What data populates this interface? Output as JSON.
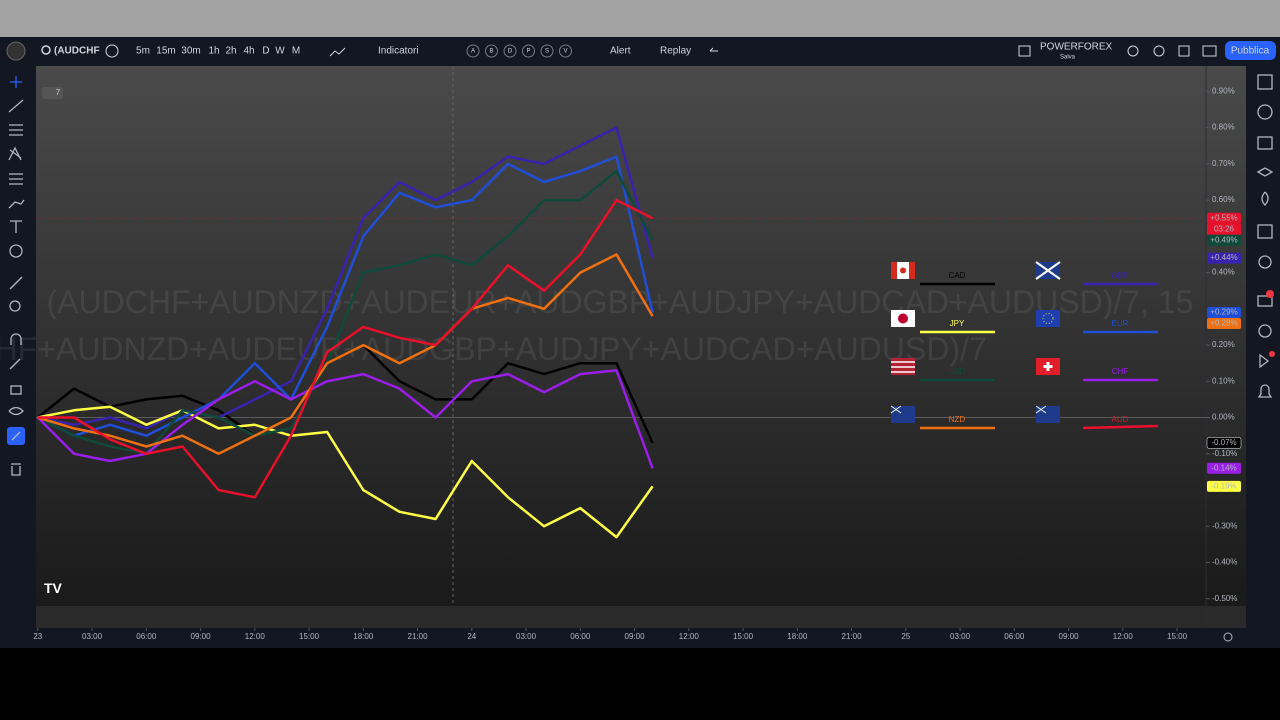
{
  "toolbar": {
    "symbol": "(AUDCHF",
    "intervals": [
      "5m",
      "15m",
      "30m",
      "1h",
      "2h",
      "4h",
      "D",
      "W",
      "M"
    ],
    "indicators": "Indicatori",
    "indicator_letters": [
      "A",
      "B",
      "D",
      "P",
      "S",
      "V"
    ],
    "alert": "Alert",
    "replay": "Replay",
    "broker": "POWERFOREX",
    "save": "Salva",
    "publish": "Pubblica"
  },
  "pane": {
    "collapse_count": "7",
    "watermark": [
      "(AUDCHF+AUDNZD+AUDEUR+AUDGBP+AUDJPY+AUDCAD+AUDUSD)/7, 15",
      "(AUDCHF+AUDNZD+AUDEUR+AUDGBP+AUDJPY+AUDCAD+AUDUSD)/7"
    ],
    "countdown": "03:26"
  },
  "chart_data": {
    "type": "line",
    "x": [
      0,
      2,
      4,
      6,
      8,
      10,
      12,
      14,
      16,
      18,
      20,
      22,
      24,
      26,
      28,
      30,
      32,
      34
    ],
    "xlim": [
      -0.1,
      64.6
    ],
    "xticks": [
      {
        "value": 0,
        "label": "23"
      },
      {
        "value": 3,
        "label": "03:00"
      },
      {
        "value": 6,
        "label": "06:00"
      },
      {
        "value": 9,
        "label": "09:00"
      },
      {
        "value": 12,
        "label": "12:00"
      },
      {
        "value": 15,
        "label": "15:00"
      },
      {
        "value": 18,
        "label": "18:00"
      },
      {
        "value": 21,
        "label": "21:00"
      },
      {
        "value": 24,
        "label": "24"
      },
      {
        "value": 27,
        "label": "03:00"
      },
      {
        "value": 30,
        "label": "06:00"
      },
      {
        "value": 33,
        "label": "09:00"
      },
      {
        "value": 36,
        "label": "12:00"
      },
      {
        "value": 39,
        "label": "15:00"
      },
      {
        "value": 42,
        "label": "18:00"
      },
      {
        "value": 45,
        "label": "21:00"
      },
      {
        "value": 48,
        "label": "25"
      },
      {
        "value": 51,
        "label": "03:00"
      },
      {
        "value": 54,
        "label": "06:00"
      },
      {
        "value": 57,
        "label": "09:00"
      },
      {
        "value": 60,
        "label": "12:00"
      },
      {
        "value": 63,
        "label": "15:00"
      }
    ],
    "ylim": [
      -0.52,
      0.97
    ],
    "yticks": [
      {
        "value": 0.9,
        "label": "0.90%"
      },
      {
        "value": 0.8,
        "label": "0.80%"
      },
      {
        "value": 0.7,
        "label": "0.70%"
      },
      {
        "value": 0.6,
        "label": "0.60%"
      },
      {
        "value": 0.4,
        "label": "0.40%"
      },
      {
        "value": 0.2,
        "label": "0.20%"
      },
      {
        "value": 0.1,
        "label": "0.10%"
      },
      {
        "value": 0,
        "label": "0.00%"
      },
      {
        "value": -0.1,
        "label": "-0.10%"
      },
      {
        "value": -0.3,
        "label": "-0.30%"
      },
      {
        "value": -0.4,
        "label": "-0.40%"
      },
      {
        "value": -0.5,
        "label": "-0.50%"
      }
    ],
    "series": [
      {
        "name": "CAD",
        "color": "#000000",
        "values": [
          0,
          0.08,
          0.03,
          0.05,
          0.06,
          0.02,
          -0.05,
          0,
          0.15,
          0.2,
          0.1,
          0.05,
          0.05,
          0.15,
          0.12,
          0.15,
          0.15,
          -0.07
        ],
        "last_label": "-0.07%"
      },
      {
        "name": "GBP",
        "color": "#3a22b0",
        "values": [
          0,
          -0.02,
          0,
          -0.03,
          0.02,
          0,
          0.05,
          0.1,
          0.3,
          0.55,
          0.65,
          0.6,
          0.65,
          0.72,
          0.7,
          0.75,
          0.8,
          0.44
        ],
        "last_label": "+0.44%"
      },
      {
        "name": "JPY",
        "color": "#ffff44",
        "values": [
          0,
          0.02,
          0.03,
          -0.02,
          0.02,
          -0.03,
          -0.02,
          -0.05,
          -0.04,
          -0.2,
          -0.26,
          -0.28,
          -0.12,
          -0.22,
          -0.3,
          -0.25,
          -0.33,
          -0.19
        ],
        "last_label": "-0.19%"
      },
      {
        "name": "EUR",
        "color": "#1f4ed8",
        "values": [
          0,
          -0.05,
          -0.02,
          -0.05,
          0,
          0.05,
          0.15,
          0.05,
          0.25,
          0.5,
          0.62,
          0.58,
          0.6,
          0.7,
          0.65,
          0.68,
          0.72,
          0.29
        ],
        "last_label": "+0.29%"
      },
      {
        "name": "USD",
        "color": "#0e4a3a",
        "values": [
          0,
          -0.05,
          -0.08,
          -0.1,
          0.02,
          0,
          -0.05,
          -0.03,
          0.15,
          0.4,
          0.42,
          0.45,
          0.42,
          0.5,
          0.6,
          0.6,
          0.68,
          0.49
        ],
        "last_label": "+0.49%"
      },
      {
        "name": "CHF",
        "color": "#9a1ee8",
        "values": [
          0,
          -0.1,
          -0.12,
          -0.1,
          -0.02,
          0.05,
          0.1,
          0.05,
          0.1,
          0.12,
          0.08,
          0,
          0.1,
          0.12,
          0.07,
          0.12,
          0.13,
          -0.14
        ],
        "last_label": "-0.14%"
      },
      {
        "name": "NZD",
        "color": "#f07010",
        "values": [
          0,
          -0.03,
          -0.05,
          -0.08,
          -0.05,
          -0.1,
          -0.05,
          0,
          0.15,
          0.2,
          0.15,
          0.2,
          0.3,
          0.33,
          0.3,
          0.4,
          0.45,
          0.28
        ],
        "last_label": "+0.28%"
      },
      {
        "name": "AUD",
        "color": "#e8102a",
        "values": [
          0,
          0,
          -0.06,
          -0.1,
          -0.08,
          -0.2,
          -0.22,
          -0.05,
          0.18,
          0.25,
          0.22,
          0.2,
          0.3,
          0.42,
          0.35,
          0.45,
          0.6,
          0.55
        ],
        "last_label": "+0.55%"
      }
    ]
  }
}
